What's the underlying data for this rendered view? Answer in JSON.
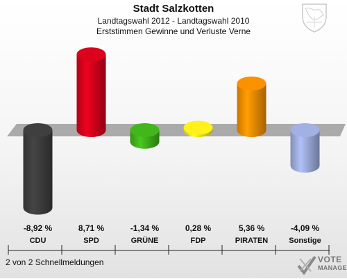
{
  "header": {
    "title": "Stadt Salzkotten",
    "subtitle1": "Landtagswahl 2012 - Landtagswahl 2010",
    "subtitle2": "Erststimmen Gewinne und Verluste Verne"
  },
  "footer": {
    "text": "2 von 2 Schnellmeldungen"
  },
  "logo": {
    "line1": "VOTE",
    "line2": "MANAGER"
  },
  "chart_data": {
    "type": "bar",
    "categories": [
      "CDU",
      "SPD",
      "GRÜNE",
      "FDP",
      "PIRATEN",
      "Sonstige"
    ],
    "values": [
      -8.92,
      8.71,
      -1.34,
      0.28,
      5.36,
      -4.09
    ],
    "value_labels": [
      "-8,92 %",
      "8,71 %",
      "-1,34 %",
      "0,28 %",
      "5,36 %",
      "-4,09 %"
    ],
    "colors": [
      "#3c3c3c",
      "#d0021b",
      "#3fae1a",
      "#f5e61a",
      "#f08a00",
      "#9aa8d8"
    ],
    "ylim": [
      -10,
      10
    ]
  }
}
